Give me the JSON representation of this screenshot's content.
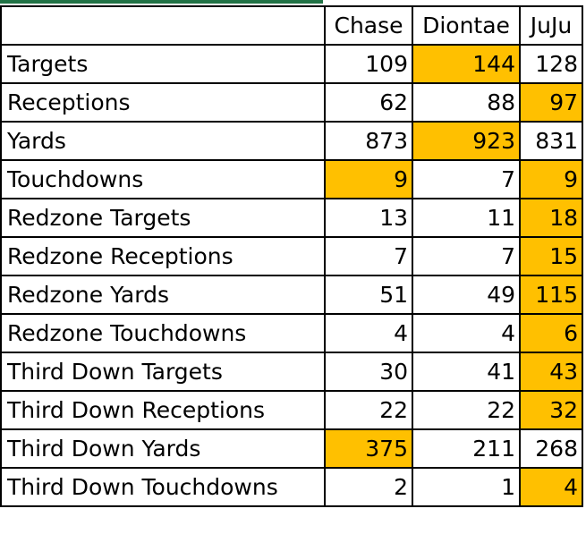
{
  "colors": {
    "highlight": "#ffc000",
    "gridline": "#000000",
    "accent": "#217346"
  },
  "columns": [
    "Chase",
    "Diontae",
    "JuJu"
  ],
  "rows": [
    {
      "label": "Targets",
      "values": [
        "109",
        "144",
        "128"
      ],
      "highlight": [
        false,
        true,
        false
      ]
    },
    {
      "label": "Receptions",
      "values": [
        "62",
        "88",
        "97"
      ],
      "highlight": [
        false,
        false,
        true
      ]
    },
    {
      "label": "Yards",
      "values": [
        "873",
        "923",
        "831"
      ],
      "highlight": [
        false,
        true,
        false
      ]
    },
    {
      "label": "Touchdowns",
      "values": [
        "9",
        "7",
        "9"
      ],
      "highlight": [
        true,
        false,
        true
      ]
    },
    {
      "label": "Redzone Targets",
      "values": [
        "13",
        "11",
        "18"
      ],
      "highlight": [
        false,
        false,
        true
      ]
    },
    {
      "label": "Redzone Receptions",
      "values": [
        "7",
        "7",
        "15"
      ],
      "highlight": [
        false,
        false,
        true
      ]
    },
    {
      "label": "Redzone Yards",
      "values": [
        "51",
        "49",
        "115"
      ],
      "highlight": [
        false,
        false,
        true
      ]
    },
    {
      "label": "Redzone Touchdowns",
      "values": [
        "4",
        "4",
        "6"
      ],
      "highlight": [
        false,
        false,
        true
      ]
    },
    {
      "label": "Third Down Targets",
      "values": [
        "30",
        "41",
        "43"
      ],
      "highlight": [
        false,
        false,
        true
      ]
    },
    {
      "label": "Third Down Receptions",
      "values": [
        "22",
        "22",
        "32"
      ],
      "highlight": [
        false,
        false,
        true
      ]
    },
    {
      "label": "Third Down Yards",
      "values": [
        "375",
        "211",
        "268"
      ],
      "highlight": [
        true,
        false,
        false
      ]
    },
    {
      "label": "Third Down Touchdowns",
      "values": [
        "2",
        "1",
        "4"
      ],
      "highlight": [
        false,
        false,
        true
      ]
    }
  ]
}
